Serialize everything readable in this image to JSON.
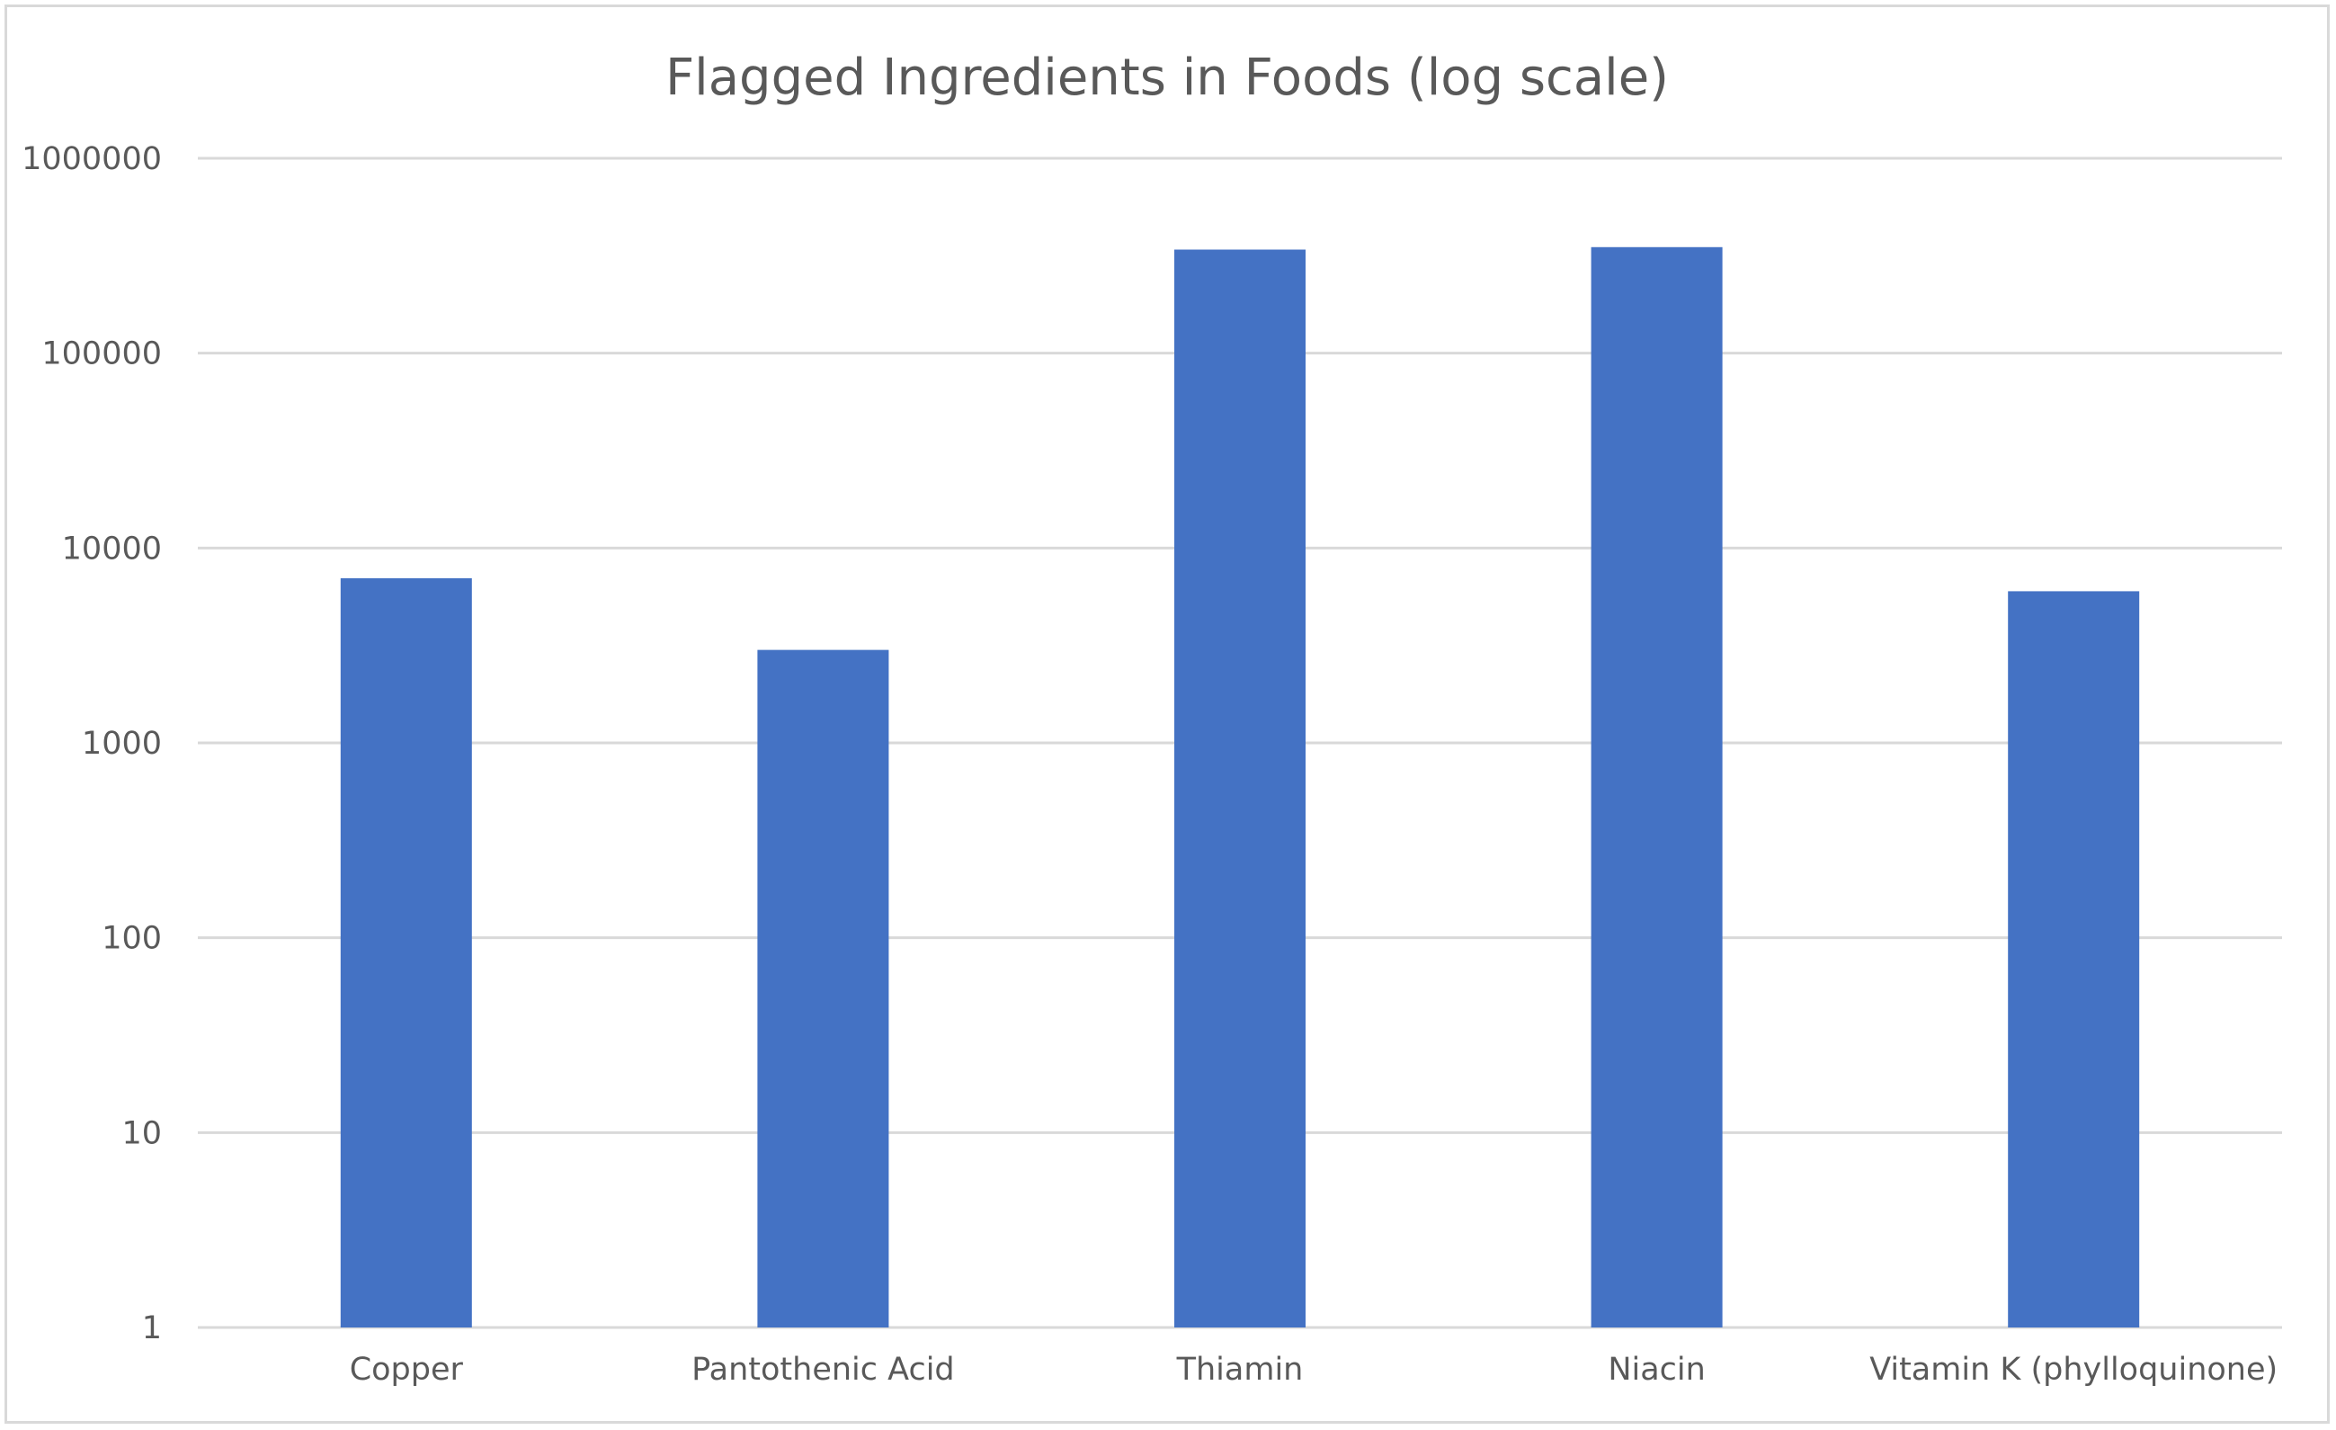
{
  "chart_data": {
    "type": "bar",
    "title": "Flagged Ingredients in Foods (log scale)",
    "xlabel": "",
    "ylabel": "",
    "y_scale": "log",
    "ylim": [
      1,
      1000000
    ],
    "y_ticks": [
      {
        "value": 1,
        "label": "1"
      },
      {
        "value": 10,
        "label": "10"
      },
      {
        "value": 100,
        "label": "100"
      },
      {
        "value": 1000,
        "label": "1000"
      },
      {
        "value": 10000,
        "label": "10000"
      },
      {
        "value": 100000,
        "label": "100000"
      },
      {
        "value": 1000000,
        "label": "1000000"
      }
    ],
    "categories": [
      "Copper",
      "Pantothenic Acid",
      "Thiamin",
      "Niacin",
      "Vitamin K (phylloquinone)"
    ],
    "values": [
      7000,
      3000,
      340000,
      350000,
      6000
    ],
    "bar_color": "#4472C4",
    "gridlines": true,
    "legend": "none"
  }
}
